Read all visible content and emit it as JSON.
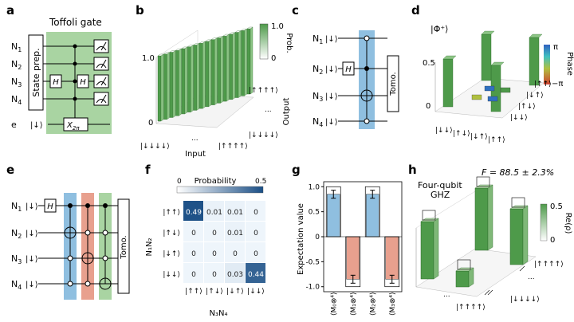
{
  "colors": {
    "gate_green": "#a9d4a2",
    "blue": "#8fbfe0",
    "red": "#e8a08e",
    "bar_green": "#4e9a4a",
    "bar_green_light": "#b8dcae",
    "heat_dark": "#1b4f86",
    "heat_light": "#eef5fb"
  },
  "panel_letters": [
    "a",
    "b",
    "c",
    "d",
    "e",
    "f",
    "g",
    "h"
  ],
  "panel_a": {
    "title": "Toffoli gate",
    "qubits": [
      "N",
      "N",
      "N",
      "N",
      "e"
    ],
    "qubit_subs": [
      "1",
      "2",
      "3",
      "4",
      ""
    ],
    "state_prep": "State prep.",
    "h": "H",
    "e_input": "|↓⟩",
    "x_gate": "X",
    "x_sub": "2π"
  },
  "panel_b": {
    "legend_top": "1.0",
    "legend_bottom": "0",
    "legend_title": "Prob.",
    "z_tick_top": "1.0",
    "z_tick_bottom": "0",
    "x_first": "|↓↓↓↓⟩",
    "x_dots": "...",
    "x_last": "|↑↑↑↑⟩",
    "x_title": "Input",
    "y_first": "|↑↑↑↑⟩",
    "y_dots": "...",
    "y_last": "|↓↓↓↓⟩",
    "y_title": "Output"
  },
  "panel_c": {
    "qubits": [
      "N",
      "N",
      "N",
      "N"
    ],
    "subs": [
      "1",
      "2",
      "3",
      "4"
    ],
    "input": "|↓⟩",
    "h": "H",
    "tomo": "Tomo."
  },
  "panel_d": {
    "ket": "|Φ⁺⟩",
    "z_top": "0.5",
    "z_bottom": "0",
    "legend_title": "Phase",
    "legend_top": "π",
    "legend_bottom": "−π",
    "x_labels": [
      "|↓↓⟩",
      "|↑↓⟩",
      "|↓↑⟩",
      "|↑↑⟩"
    ],
    "y_labels": [
      "|↓↓⟩",
      "|↑↓⟩",
      "|↓↑⟩",
      "|↑↑⟩"
    ]
  },
  "panel_e": {
    "qubits": [
      "N",
      "N",
      "N",
      "N"
    ],
    "subs": [
      "1",
      "2",
      "3",
      "4"
    ],
    "input": "|↓⟩",
    "h": "H",
    "tomo": "Tomo."
  },
  "panel_f": {
    "title": "Probability",
    "scale_min": "0",
    "scale_max": "0.5",
    "row_axis": "N₁N₂",
    "col_axis": "N₃N₄",
    "row_labels": [
      "|↑↑⟩",
      "|↑↓⟩",
      "|↓↑⟩",
      "|↓↓⟩"
    ],
    "col_labels": [
      "|↑↑⟩",
      "|↑↓⟩",
      "|↓↑⟩",
      "|↓↓⟩"
    ],
    "values": [
      [
        "0.49",
        "0.01",
        "0.01",
        "0"
      ],
      [
        "0",
        "0",
        "0.01",
        "0"
      ],
      [
        "0",
        "0",
        "0",
        "0"
      ],
      [
        "0",
        "0",
        "0.03",
        "0.44"
      ]
    ]
  },
  "panel_g": {
    "ylabel": "Expectation value",
    "ticks": [
      "1.0",
      "0.5",
      "0",
      "-0.5",
      "-1.0"
    ],
    "xlabels": [
      "⟨M₀⊗⁴⟩",
      "⟨M₁⊗⁴⟩",
      "⟨M₂⊗⁴⟩",
      "⟨M₃⊗⁴⟩"
    ]
  },
  "panel_h": {
    "title": "Four-qubit",
    "title2": "GHZ",
    "fidelity": "F = 88.5 ± 2.3%",
    "legend_top": "0.5",
    "legend_bottom": "0",
    "legend_title": "Re(ρ)",
    "x_first": "|↑↑↑↑⟩",
    "x_dots": "...",
    "y_first": "|↑↑↑↑⟩",
    "y_dots": "...",
    "y_last": "|↓↓↓↓⟩"
  },
  "chart_data": [
    {
      "type": "bar",
      "panel": "g",
      "categories": [
        "⟨M₀⊗⁴⟩",
        "⟨M₁⊗⁴⟩",
        "⟨M₂⊗⁴⟩",
        "⟨M₃⊗⁴⟩"
      ],
      "values": [
        0.85,
        -0.85,
        0.85,
        -0.85
      ],
      "ideal": [
        1.0,
        -1.0,
        1.0,
        -1.0
      ],
      "ylabel": "Expectation value",
      "ylim": [
        -1.1,
        1.1
      ]
    },
    {
      "type": "heatmap",
      "panel": "f",
      "rows": [
        "|↑↑⟩",
        "|↑↓⟩",
        "|↓↑⟩",
        "|↓↓⟩"
      ],
      "cols": [
        "|↑↑⟩",
        "|↑↓⟩",
        "|↓↑⟩",
        "|↓↓⟩"
      ],
      "values": [
        [
          0.49,
          0.01,
          0.01,
          0
        ],
        [
          0,
          0,
          0.01,
          0
        ],
        [
          0,
          0,
          0,
          0
        ],
        [
          0,
          0,
          0.03,
          0.44
        ]
      ],
      "range": [
        0,
        0.5
      ]
    }
  ]
}
